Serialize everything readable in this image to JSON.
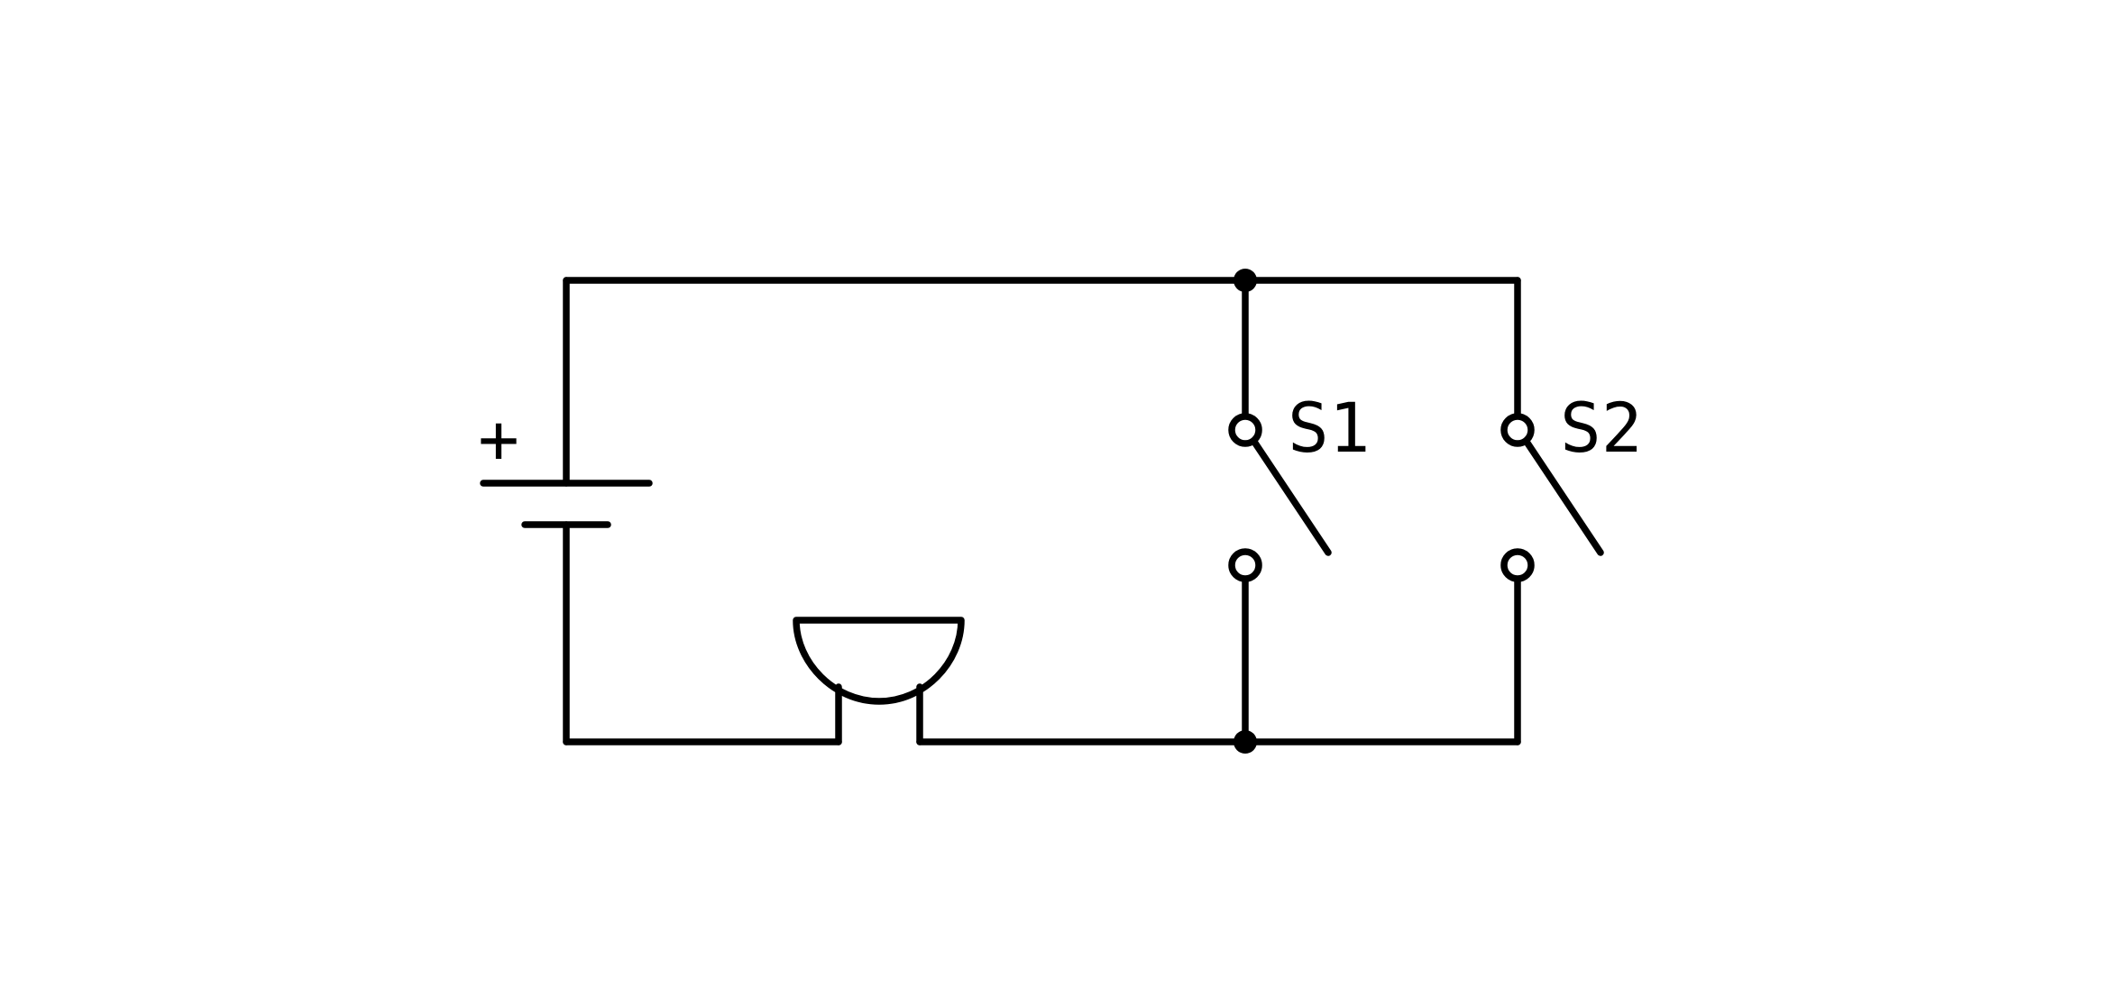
{
  "colors": {
    "ink": "#000000",
    "background": "#ffffff",
    "terminal_fill": "#ffffff"
  },
  "diagram": {
    "battery": {
      "polarity_mark": "+"
    },
    "switches": [
      {
        "label": "S1",
        "state": "open"
      },
      {
        "label": "S2",
        "state": "open"
      }
    ],
    "buzzer": {
      "symbol": "buzzer"
    },
    "junctions": 2
  }
}
